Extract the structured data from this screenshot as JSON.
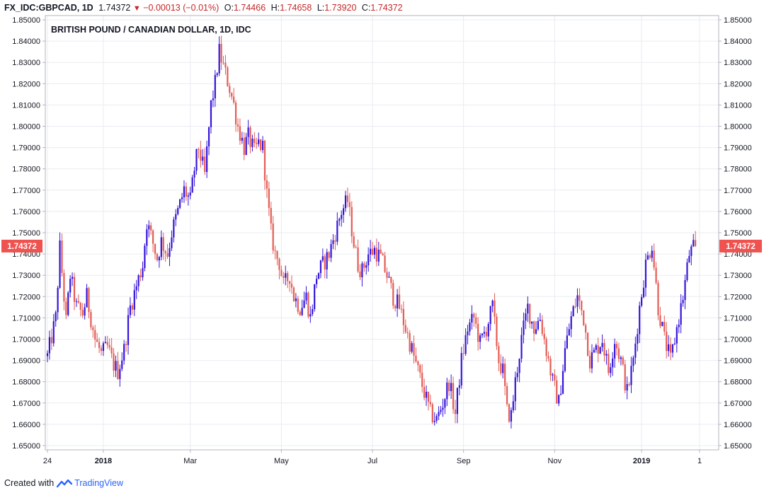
{
  "header": {
    "symbol": "FX_IDC:GBPCAD, 1D",
    "last": "1.74372",
    "change": "−0.00013 (−0.01%)",
    "open_label": "O:",
    "open": "1.74466",
    "high_label": "H:",
    "high": "1.74658",
    "low_label": "L:",
    "low": "1.73920",
    "close_label": "C:",
    "close": "1.74372"
  },
  "footer": {
    "created_with": "Created with",
    "brand": "TradingView"
  },
  "colors": {
    "up": "#3515d9",
    "down": "#e45c55",
    "grid": "#e8ecf0",
    "price_tag": "#ef5350"
  },
  "chart_data": {
    "type": "candlestick",
    "title": "BRITISH POUND / CANADIAN DOLLAR, 1D, IDC",
    "current_price_label": "1.74372",
    "current_price": 1.74372,
    "ylim": [
      1.648,
      1.852
    ],
    "y_ticks": [
      "1.65000",
      "1.66000",
      "1.67000",
      "1.68000",
      "1.69000",
      "1.70000",
      "1.71000",
      "1.72000",
      "1.73000",
      "1.74000",
      "1.75000",
      "1.76000",
      "1.77000",
      "1.78000",
      "1.79000",
      "1.80000",
      "1.81000",
      "1.82000",
      "1.83000",
      "1.84000",
      "1.85000"
    ],
    "x_ticks": [
      {
        "label": "24",
        "index": 0,
        "bold": false
      },
      {
        "label": "2018",
        "index": 27,
        "bold": true
      },
      {
        "label": "Mar",
        "index": 69,
        "bold": false
      },
      {
        "label": "May",
        "index": 113,
        "bold": false
      },
      {
        "label": "Jul",
        "index": 157,
        "bold": false
      },
      {
        "label": "Sep",
        "index": 201,
        "bold": false
      },
      {
        "label": "Nov",
        "index": 245,
        "bold": false
      },
      {
        "label": "2019",
        "index": 287,
        "bold": true
      },
      {
        "label": "1",
        "index": 315,
        "bold": false
      }
    ],
    "index_range": [
      0,
      315
    ],
    "series": [
      {
        "name": "GBPCAD",
        "ohlc": []
      }
    ],
    "path_keypoints": [
      [
        0,
        1.692
      ],
      [
        4,
        1.71
      ],
      [
        6,
        1.743
      ],
      [
        9,
        1.708
      ],
      [
        11,
        1.73
      ],
      [
        14,
        1.715
      ],
      [
        17,
        1.712
      ],
      [
        19,
        1.72
      ],
      [
        23,
        1.7
      ],
      [
        26,
        1.693
      ],
      [
        29,
        1.696
      ],
      [
        32,
        1.688
      ],
      [
        34,
        1.685
      ],
      [
        37,
        1.695
      ],
      [
        40,
        1.715
      ],
      [
        43,
        1.725
      ],
      [
        46,
        1.735
      ],
      [
        48,
        1.755
      ],
      [
        51,
        1.745
      ],
      [
        53,
        1.738
      ],
      [
        55,
        1.746
      ],
      [
        58,
        1.74
      ],
      [
        60,
        1.75
      ],
      [
        63,
        1.76
      ],
      [
        66,
        1.77
      ],
      [
        69,
        1.765
      ],
      [
        71,
        1.78
      ],
      [
        73,
        1.79
      ],
      [
        76,
        1.777
      ],
      [
        79,
        1.81
      ],
      [
        81,
        1.82
      ],
      [
        83,
        1.835
      ],
      [
        85,
        1.828
      ],
      [
        88,
        1.818
      ],
      [
        90,
        1.81
      ],
      [
        92,
        1.8
      ],
      [
        95,
        1.79
      ],
      [
        97,
        1.795
      ],
      [
        100,
        1.788
      ],
      [
        102,
        1.792
      ],
      [
        104,
        1.79
      ],
      [
        106,
        1.768
      ],
      [
        108,
        1.75
      ],
      [
        110,
        1.74
      ],
      [
        112,
        1.736
      ],
      [
        114,
        1.725
      ],
      [
        117,
        1.73
      ],
      [
        119,
        1.72
      ],
      [
        122,
        1.715
      ],
      [
        125,
        1.72
      ],
      [
        127,
        1.71
      ],
      [
        130,
        1.73
      ],
      [
        133,
        1.735
      ],
      [
        136,
        1.74
      ],
      [
        139,
        1.75
      ],
      [
        142,
        1.76
      ],
      [
        145,
        1.765
      ],
      [
        148,
        1.745
      ],
      [
        150,
        1.735
      ],
      [
        152,
        1.732
      ],
      [
        155,
        1.74
      ],
      [
        158,
        1.742
      ],
      [
        161,
        1.738
      ],
      [
        164,
        1.73
      ],
      [
        167,
        1.72
      ],
      [
        170,
        1.715
      ],
      [
        173,
        1.705
      ],
      [
        176,
        1.695
      ],
      [
        179,
        1.685
      ],
      [
        182,
        1.675
      ],
      [
        185,
        1.665
      ],
      [
        188,
        1.662
      ],
      [
        191,
        1.67
      ],
      [
        194,
        1.68
      ],
      [
        197,
        1.665
      ],
      [
        200,
        1.69
      ],
      [
        203,
        1.705
      ],
      [
        206,
        1.71
      ],
      [
        209,
        1.698
      ],
      [
        212,
        1.705
      ],
      [
        215,
        1.715
      ],
      [
        218,
        1.69
      ],
      [
        220,
        1.685
      ],
      [
        222,
        1.666
      ],
      [
        224,
        1.664
      ],
      [
        226,
        1.68
      ],
      [
        229,
        1.7
      ],
      [
        232,
        1.715
      ],
      [
        235,
        1.705
      ],
      [
        238,
        1.71
      ],
      [
        241,
        1.695
      ],
      [
        244,
        1.68
      ],
      [
        247,
        1.67
      ],
      [
        250,
        1.695
      ],
      [
        253,
        1.71
      ],
      [
        256,
        1.72
      ],
      [
        259,
        1.71
      ],
      [
        262,
        1.69
      ],
      [
        265,
        1.695
      ],
      [
        268,
        1.7
      ],
      [
        271,
        1.685
      ],
      [
        274,
        1.7
      ],
      [
        277,
        1.69
      ],
      [
        280,
        1.675
      ],
      [
        283,
        1.69
      ],
      [
        286,
        1.715
      ],
      [
        289,
        1.735
      ],
      [
        292,
        1.745
      ],
      [
        295,
        1.715
      ],
      [
        298,
        1.7
      ],
      [
        301,
        1.69
      ],
      [
        304,
        1.705
      ],
      [
        307,
        1.72
      ],
      [
        310,
        1.74
      ],
      [
        313,
        1.7437
      ]
    ]
  }
}
